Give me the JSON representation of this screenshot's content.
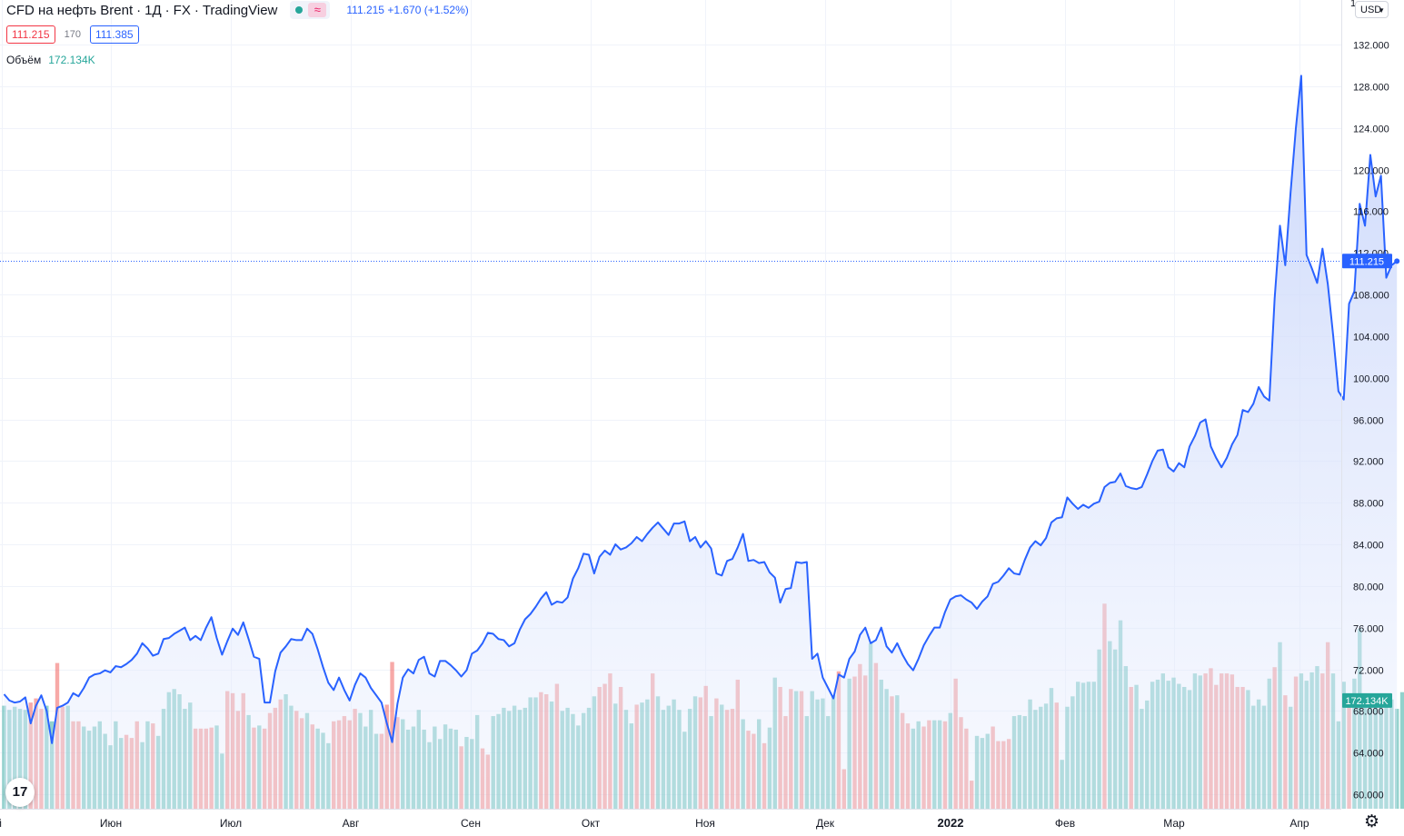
{
  "header": {
    "symbol": "CFD на нефть Brent",
    "interval": "1Д",
    "exchange": "FX",
    "source": "TradingView",
    "last_price": "111.215",
    "change": "+1.670",
    "change_pct": "(+1.52%)",
    "bid": "111.215",
    "spread": "170",
    "ask": "111.385",
    "volume_label": "Объём",
    "volume_value": "172.134K",
    "currency": "USD",
    "top_tick_fragment": "1"
  },
  "colors": {
    "line": "#2962ff",
    "area_top": "#c9d6fb",
    "up_volume": "#26a69a",
    "down_volume": "#ef5350",
    "grid": "#f0f3fa",
    "axis_text": "#131722"
  },
  "icons": {
    "settings": "gear-icon",
    "logo": "tradingview-logo-icon",
    "dropdown": "chevron-down-icon"
  },
  "chart_data": {
    "type": "area",
    "y_ticks": [
      "132.000",
      "128.000",
      "124.000",
      "120.000",
      "116.000",
      "112.000",
      "108.000",
      "104.000",
      "100.000",
      "96.000",
      "92.000",
      "88.000",
      "84.000",
      "80.000",
      "76.000",
      "72.000",
      "68.000",
      "64.000",
      "60.000"
    ],
    "ylim": [
      59.0,
      133.5
    ],
    "x_ticks": [
      "й",
      "Июн",
      "Июл",
      "Авг",
      "Сен",
      "Окт",
      "Ноя",
      "Дек",
      "2022",
      "Фев",
      "Мар",
      "Апр"
    ],
    "price_label": "111.215",
    "volume_label": "172.134K",
    "price_line": [
      69.6,
      69.0,
      68.8,
      68.9,
      69.3,
      66.8,
      68.5,
      69.5,
      68.0,
      64.9,
      68.3,
      68.5,
      68.8,
      69.7,
      69.4,
      70.2,
      71.2,
      71.5,
      71.6,
      71.9,
      71.7,
      72.3,
      72.2,
      72.5,
      72.9,
      73.5,
      74.5,
      74.0,
      73.3,
      73.5,
      74.9,
      75.0,
      75.4,
      75.7,
      76.0,
      74.8,
      75.2,
      74.8,
      76.0,
      77.0,
      75.0,
      73.4,
      74.7,
      75.9,
      75.3,
      76.5,
      74.9,
      73.2,
      73.0,
      68.8,
      68.8,
      71.8,
      73.6,
      74.2,
      74.9,
      74.8,
      74.8,
      75.9,
      75.4,
      73.9,
      72.2,
      70.7,
      70.0,
      71.2,
      70.0,
      69.0,
      70.5,
      71.6,
      71.2,
      70.2,
      69.5,
      68.8,
      66.8,
      65.0,
      68.7,
      71.2,
      72.0,
      71.6,
      72.9,
      73.2,
      71.6,
      71.3,
      72.8,
      72.8,
      72.4,
      71.9,
      71.3,
      71.9,
      73.5,
      73.8,
      74.5,
      75.5,
      75.4,
      74.9,
      74.8,
      74.2,
      74.5,
      75.8,
      76.8,
      77.3,
      78.0,
      78.8,
      79.4,
      78.2,
      78.5,
      78.4,
      78.9,
      80.7,
      81.7,
      83.1,
      83.0,
      81.2,
      82.8,
      83.4,
      83.0,
      84.0,
      83.5,
      83.7,
      84.1,
      84.7,
      84.3,
      85.0,
      85.6,
      86.1,
      85.5,
      84.9,
      86.0,
      86.0,
      86.2,
      84.3,
      84.7,
      83.7,
      84.3,
      83.6,
      81.2,
      81.0,
      82.4,
      82.6,
      83.7,
      85.0,
      82.4,
      82.5,
      82.2,
      82.3,
      81.3,
      80.8,
      78.4,
      79.7,
      79.8,
      82.3,
      82.2,
      82.3,
      73.0,
      73.5,
      71.2,
      70.2,
      69.2,
      71.5,
      71.2,
      73.0,
      73.7,
      75.3,
      76.0,
      74.5,
      74.8,
      76.0,
      74.2,
      73.6,
      74.5,
      73.4,
      72.5,
      71.9,
      73.0,
      74.3,
      75.2,
      76.0,
      76.0,
      77.5,
      78.7,
      79.0,
      79.1,
      78.7,
      78.4,
      77.8,
      78.5,
      79.0,
      80.2,
      80.4,
      81.0,
      81.7,
      81.2,
      81.1,
      82.5,
      83.7,
      84.3,
      83.9,
      84.6,
      86.1,
      86.5,
      86.6,
      88.5,
      87.9,
      87.4,
      87.8,
      87.5,
      87.9,
      88.1,
      89.5,
      89.9,
      90.0,
      90.8,
      89.6,
      89.4,
      89.3,
      89.5,
      90.7,
      92.0,
      93.0,
      93.1,
      91.4,
      91.0,
      91.8,
      91.4,
      93.4,
      94.4,
      95.7,
      96.0,
      93.4,
      92.3,
      91.4,
      92.3,
      93.6,
      94.5,
      96.9,
      96.7,
      97.5,
      99.1,
      98.2,
      97.8,
      107.6,
      114.6,
      110.8,
      117.8,
      124.0,
      129.0,
      111.8,
      110.5,
      109.1,
      112.4,
      109.0,
      104.1,
      98.7,
      97.9,
      107.1,
      108.3,
      116.7,
      114.6,
      121.4,
      117.4,
      119.4,
      109.6,
      110.8,
      111.2
    ],
    "volume": [
      [
        68.5,
        0
      ],
      [
        68.1,
        0
      ],
      [
        68.4,
        0
      ],
      [
        68.2,
        0
      ],
      [
        68.1,
        0
      ],
      [
        68.8,
        1
      ],
      [
        69.2,
        1
      ],
      [
        68.2,
        1
      ],
      [
        68.5,
        0
      ],
      [
        67.0,
        0
      ],
      [
        72.6,
        1
      ],
      [
        68.4,
        1
      ],
      [
        68.5,
        0
      ],
      [
        67.0,
        1
      ],
      [
        67.0,
        1
      ],
      [
        66.5,
        0
      ],
      [
        66.1,
        0
      ],
      [
        66.5,
        0
      ],
      [
        67.0,
        0
      ],
      [
        65.8,
        0
      ],
      [
        64.7,
        0
      ],
      [
        67.0,
        0
      ],
      [
        65.4,
        0
      ],
      [
        65.7,
        1
      ],
      [
        65.4,
        1
      ],
      [
        67.0,
        1
      ],
      [
        65.0,
        0
      ],
      [
        67.0,
        0
      ],
      [
        66.8,
        1
      ],
      [
        65.6,
        0
      ],
      [
        68.2,
        0
      ],
      [
        69.8,
        0
      ],
      [
        70.1,
        0
      ],
      [
        69.6,
        0
      ],
      [
        68.2,
        0
      ],
      [
        68.8,
        0
      ],
      [
        66.3,
        1
      ],
      [
        66.3,
        1
      ],
      [
        66.3,
        1
      ],
      [
        66.4,
        1
      ],
      [
        66.6,
        0
      ],
      [
        63.9,
        0
      ],
      [
        69.9,
        1
      ],
      [
        69.7,
        1
      ],
      [
        68.0,
        1
      ],
      [
        69.7,
        1
      ],
      [
        67.6,
        0
      ],
      [
        66.4,
        1
      ],
      [
        66.6,
        0
      ],
      [
        66.3,
        1
      ],
      [
        67.8,
        1
      ],
      [
        68.3,
        1
      ],
      [
        69.1,
        1
      ],
      [
        69.6,
        0
      ],
      [
        68.5,
        0
      ],
      [
        68.0,
        1
      ],
      [
        67.3,
        1
      ],
      [
        67.8,
        0
      ],
      [
        66.7,
        1
      ],
      [
        66.3,
        0
      ],
      [
        65.9,
        0
      ],
      [
        64.9,
        0
      ],
      [
        67.0,
        1
      ],
      [
        67.1,
        1
      ],
      [
        67.5,
        1
      ],
      [
        67.1,
        1
      ],
      [
        68.2,
        1
      ],
      [
        67.8,
        0
      ],
      [
        66.5,
        0
      ],
      [
        68.1,
        0
      ],
      [
        65.8,
        0
      ],
      [
        65.8,
        1
      ],
      [
        68.6,
        1
      ],
      [
        72.7,
        1
      ],
      [
        67.4,
        1
      ],
      [
        67.2,
        0
      ],
      [
        66.2,
        0
      ],
      [
        66.5,
        0
      ],
      [
        68.1,
        0
      ],
      [
        66.2,
        0
      ],
      [
        65.0,
        0
      ],
      [
        66.5,
        0
      ],
      [
        65.3,
        0
      ],
      [
        66.7,
        0
      ],
      [
        66.3,
        0
      ],
      [
        66.2,
        0
      ],
      [
        64.6,
        1
      ],
      [
        65.5,
        0
      ],
      [
        65.3,
        0
      ],
      [
        67.6,
        0
      ],
      [
        64.4,
        1
      ],
      [
        63.8,
        1
      ],
      [
        67.5,
        0
      ],
      [
        67.7,
        0
      ],
      [
        68.3,
        0
      ],
      [
        68.0,
        0
      ],
      [
        68.5,
        0
      ],
      [
        68.1,
        0
      ],
      [
        68.3,
        0
      ],
      [
        69.3,
        0
      ],
      [
        69.3,
        0
      ],
      [
        69.8,
        1
      ],
      [
        69.6,
        1
      ],
      [
        68.9,
        0
      ],
      [
        70.6,
        1
      ],
      [
        68.0,
        0
      ],
      [
        68.3,
        0
      ],
      [
        67.7,
        0
      ],
      [
        66.6,
        0
      ],
      [
        67.8,
        0
      ],
      [
        68.3,
        0
      ],
      [
        69.4,
        0
      ],
      [
        70.3,
        1
      ],
      [
        70.6,
        1
      ],
      [
        71.6,
        1
      ],
      [
        68.7,
        0
      ],
      [
        70.3,
        1
      ],
      [
        68.1,
        0
      ],
      [
        66.8,
        0
      ],
      [
        68.6,
        1
      ],
      [
        68.8,
        0
      ],
      [
        69.1,
        0
      ],
      [
        71.6,
        1
      ],
      [
        69.4,
        0
      ],
      [
        68.1,
        0
      ],
      [
        68.5,
        0
      ],
      [
        69.1,
        0
      ],
      [
        68.1,
        0
      ],
      [
        66.0,
        0
      ],
      [
        68.2,
        0
      ],
      [
        69.4,
        0
      ],
      [
        69.3,
        1
      ],
      [
        70.4,
        1
      ],
      [
        67.5,
        0
      ],
      [
        69.2,
        1
      ],
      [
        68.6,
        0
      ],
      [
        68.1,
        1
      ],
      [
        68.2,
        1
      ],
      [
        71.0,
        1
      ],
      [
        67.2,
        0
      ],
      [
        66.1,
        1
      ],
      [
        65.8,
        1
      ],
      [
        67.2,
        0
      ],
      [
        64.9,
        1
      ],
      [
        66.4,
        0
      ],
      [
        71.2,
        0
      ],
      [
        70.3,
        1
      ],
      [
        67.5,
        1
      ],
      [
        70.1,
        1
      ],
      [
        69.9,
        0
      ],
      [
        69.9,
        1
      ],
      [
        67.5,
        0
      ],
      [
        69.9,
        0
      ],
      [
        69.1,
        0
      ],
      [
        69.2,
        0
      ],
      [
        67.5,
        0
      ],
      [
        69.5,
        0
      ],
      [
        71.8,
        1
      ],
      [
        62.4,
        1
      ],
      [
        71.1,
        0
      ],
      [
        71.3,
        1
      ],
      [
        72.5,
        1
      ],
      [
        71.4,
        1
      ],
      [
        74.5,
        0
      ],
      [
        72.6,
        1
      ],
      [
        71.0,
        0
      ],
      [
        70.1,
        0
      ],
      [
        69.4,
        1
      ],
      [
        69.5,
        0
      ],
      [
        67.8,
        1
      ],
      [
        66.8,
        1
      ],
      [
        66.3,
        0
      ],
      [
        67.0,
        0
      ],
      [
        66.5,
        1
      ],
      [
        67.1,
        1
      ],
      [
        67.1,
        0
      ],
      [
        67.1,
        0
      ],
      [
        67.0,
        1
      ],
      [
        67.8,
        0
      ],
      [
        71.1,
        1
      ],
      [
        67.4,
        1
      ],
      [
        66.3,
        1
      ],
      [
        61.3,
        1
      ],
      [
        65.6,
        0
      ],
      [
        65.4,
        0
      ],
      [
        65.8,
        0
      ],
      [
        66.5,
        1
      ],
      [
        65.1,
        1
      ],
      [
        65.1,
        1
      ],
      [
        65.3,
        1
      ],
      [
        67.5,
        0
      ],
      [
        67.6,
        0
      ],
      [
        67.5,
        0
      ],
      [
        69.1,
        0
      ],
      [
        68.1,
        0
      ],
      [
        68.4,
        0
      ],
      [
        68.7,
        0
      ],
      [
        70.2,
        0
      ],
      [
        68.8,
        1
      ],
      [
        63.3,
        0
      ],
      [
        68.4,
        0
      ],
      [
        69.4,
        0
      ],
      [
        70.8,
        0
      ],
      [
        70.7,
        0
      ],
      [
        70.8,
        0
      ],
      [
        70.8,
        0
      ],
      [
        73.9,
        0
      ],
      [
        78.3,
        1
      ],
      [
        74.7,
        0
      ],
      [
        73.9,
        0
      ],
      [
        76.7,
        0
      ],
      [
        72.3,
        0
      ],
      [
        70.3,
        1
      ],
      [
        70.5,
        0
      ],
      [
        68.2,
        0
      ],
      [
        69.0,
        0
      ],
      [
        70.8,
        0
      ],
      [
        71.0,
        0
      ],
      [
        71.6,
        0
      ],
      [
        70.9,
        0
      ],
      [
        71.2,
        0
      ],
      [
        70.6,
        0
      ],
      [
        70.3,
        0
      ],
      [
        70.0,
        0
      ],
      [
        71.6,
        0
      ],
      [
        71.4,
        0
      ],
      [
        71.6,
        1
      ],
      [
        72.1,
        1
      ],
      [
        70.5,
        1
      ],
      [
        71.6,
        1
      ],
      [
        71.6,
        1
      ],
      [
        71.5,
        1
      ],
      [
        70.3,
        1
      ],
      [
        70.3,
        1
      ],
      [
        70.0,
        0
      ],
      [
        68.5,
        0
      ],
      [
        69.1,
        0
      ],
      [
        68.5,
        0
      ],
      [
        71.1,
        0
      ],
      [
        72.2,
        1
      ],
      [
        74.6,
        0
      ],
      [
        69.5,
        1
      ],
      [
        68.4,
        0
      ],
      [
        71.3,
        1
      ],
      [
        71.6,
        0
      ],
      [
        70.9,
        0
      ],
      [
        71.7,
        0
      ],
      [
        72.3,
        0
      ],
      [
        71.6,
        1
      ],
      [
        74.6,
        1
      ],
      [
        71.6,
        0
      ],
      [
        67.0,
        0
      ],
      [
        70.8,
        0
      ],
      [
        68.4,
        1
      ],
      [
        71.1,
        0
      ],
      [
        75.9,
        0
      ],
      [
        68.9,
        0
      ],
      [
        68.4,
        0
      ],
      [
        68.9,
        0
      ],
      [
        68.2,
        0
      ],
      [
        69.3,
        0
      ],
      [
        69.1,
        0
      ],
      [
        68.2,
        0
      ],
      [
        69.8,
        0
      ]
    ]
  }
}
